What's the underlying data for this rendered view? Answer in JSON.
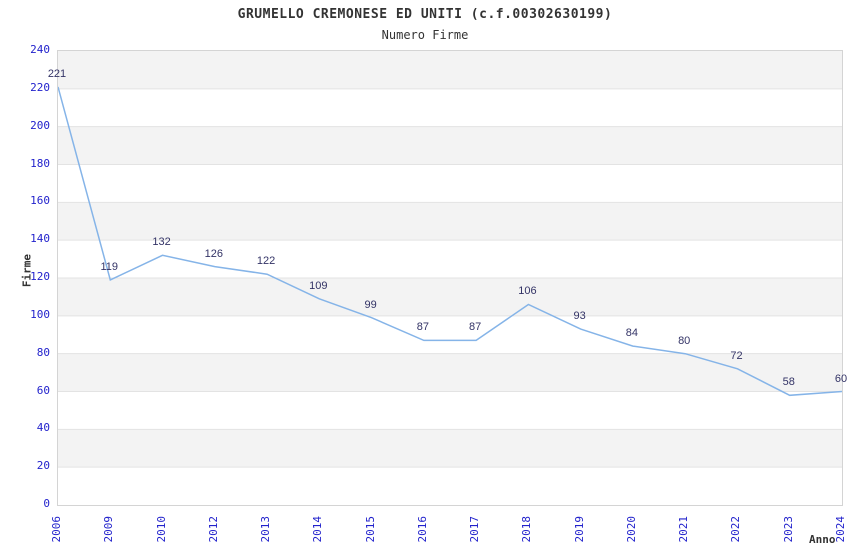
{
  "chart_data": {
    "type": "line",
    "title": "GRUMELLO CREMONESE ED UNITI (c.f.00302630199)",
    "subtitle": "Numero Firme",
    "xlabel": "Anno",
    "ylabel": "Firme",
    "categories": [
      "2006",
      "2009",
      "2010",
      "2012",
      "2013",
      "2014",
      "2015",
      "2016",
      "2017",
      "2018",
      "2019",
      "2020",
      "2021",
      "2022",
      "2023",
      "2024"
    ],
    "values": [
      221,
      119,
      132,
      126,
      122,
      109,
      99,
      87,
      87,
      106,
      93,
      84,
      80,
      72,
      58,
      60
    ],
    "ylim": [
      0,
      240
    ],
    "ytick_step": 20,
    "grid": true,
    "legend": "none",
    "colors": {
      "line": "#85b4e8",
      "tick_label": "#2222cc",
      "data_label": "#333366",
      "title_text": "#333333",
      "band_gray": "#f3f3f3",
      "band_white": "#ffffff",
      "gridline": "#e3e3e3",
      "plot_border": "#d4d4d4"
    }
  }
}
